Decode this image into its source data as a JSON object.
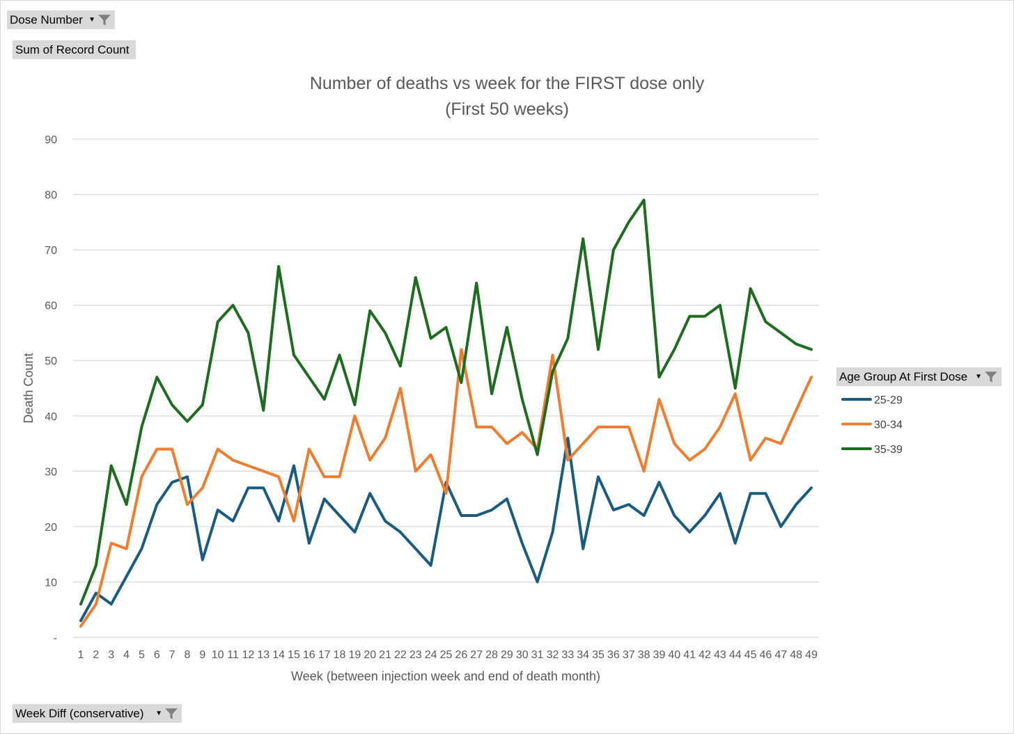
{
  "pivot_buttons": {
    "dose_number": "Dose Number",
    "sum_field": "Sum of Record Count",
    "week_diff": "Week Diff (conservative)",
    "age_group": "Age Group At First Dose"
  },
  "chart_data": {
    "type": "line",
    "title": "Number of deaths vs week for the FIRST dose only",
    "subtitle": "(First 50 weeks)",
    "xlabel": "Week (between injection week and end of death month)",
    "ylabel": "Death Count",
    "ylim": [
      0,
      90
    ],
    "yticks": [
      "-",
      "10",
      "20",
      "30",
      "40",
      "50",
      "60",
      "70",
      "80",
      "90"
    ],
    "grid": true,
    "legend_position": "right",
    "x": [
      1,
      2,
      3,
      4,
      5,
      6,
      7,
      8,
      9,
      10,
      11,
      12,
      13,
      14,
      15,
      16,
      17,
      18,
      19,
      20,
      21,
      22,
      23,
      24,
      25,
      26,
      27,
      28,
      29,
      30,
      31,
      32,
      33,
      34,
      35,
      36,
      37,
      38,
      39,
      40,
      41,
      42,
      43,
      44,
      45,
      46,
      47,
      48,
      49
    ],
    "series": [
      {
        "name": "25-29",
        "color": "#1a5b80",
        "values": [
          3,
          8,
          6,
          11,
          16,
          24,
          28,
          29,
          14,
          23,
          21,
          27,
          27,
          21,
          31,
          17,
          25,
          22,
          19,
          26,
          21,
          19,
          16,
          13,
          28,
          22,
          22,
          23,
          25,
          17,
          10,
          19,
          36,
          16,
          29,
          23,
          24,
          22,
          28,
          22,
          19,
          22,
          26,
          17,
          26,
          26,
          20,
          24,
          27
        ]
      },
      {
        "name": "30-34",
        "color": "#ed7d31",
        "values": [
          2,
          6,
          17,
          16,
          29,
          34,
          34,
          24,
          27,
          34,
          32,
          31,
          30,
          29,
          21,
          34,
          29,
          29,
          40,
          32,
          36,
          45,
          30,
          33,
          26,
          52,
          38,
          38,
          35,
          37,
          34,
          51,
          32,
          35,
          38,
          38,
          38,
          30,
          43,
          35,
          32,
          34,
          38,
          44,
          32,
          36,
          35,
          41,
          47
        ]
      },
      {
        "name": "35-39",
        "color": "#1e6b21",
        "values": [
          6,
          13,
          31,
          24,
          38,
          47,
          42,
          39,
          42,
          57,
          60,
          55,
          41,
          67,
          51,
          47,
          43,
          51,
          42,
          59,
          55,
          49,
          65,
          54,
          56,
          46,
          64,
          44,
          56,
          43,
          33,
          48,
          54,
          72,
          52,
          70,
          75,
          79,
          47,
          52,
          58,
          58,
          60,
          45,
          63,
          57,
          55,
          53,
          52
        ]
      }
    ]
  }
}
